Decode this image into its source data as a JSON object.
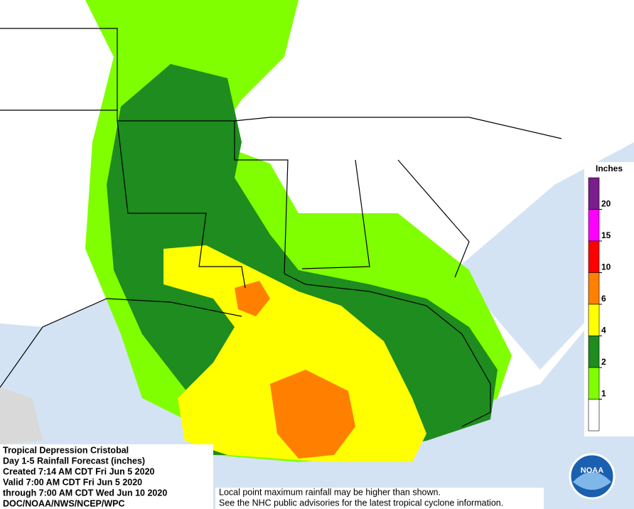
{
  "info": {
    "lines": [
      "Tropical Depression Cristobal",
      "Day 1-5 Rainfall Forecast (inches)",
      "Created 7:14 AM CDT Fri Jun 5 2020",
      "Valid 7:00 AM CDT Fri Jun 5 2020",
      "through 7:00 AM CDT Wed Jun 10 2020",
      "DOC/NOAA/NWS/NCEP/WPC"
    ]
  },
  "legend": {
    "title": "Inches",
    "ticks": [
      20,
      15,
      10,
      6,
      4,
      2,
      1
    ],
    "colors": [
      "#7a1e8c",
      "#ff00ff",
      "#ff0000",
      "#ff8000",
      "#ffff00",
      "#1e8c1e",
      "#80ff00",
      "#ffffff"
    ]
  },
  "disclaimer": [
    "Local point maximum rainfall may be higher than shown.",
    "See the NHC public advisories for the latest tropical cyclone information."
  ],
  "logo": "NOAA"
}
